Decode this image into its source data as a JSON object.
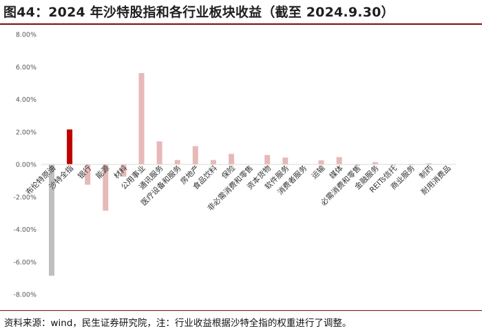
{
  "title": "图44：2024 年沙特股指和各行业板块收益（截至 2024.9.30）",
  "source": "资料来源：wind，民生证券研究院，注：行业收益根据沙特全指的权重进行了调整。",
  "colors": {
    "index": "#c00000",
    "sector": "#e6b9b8",
    "energy": "#bfbfbf",
    "axis": "#d9d9d9",
    "rule": "#7a0a0a"
  },
  "chart_data": {
    "type": "bar",
    "ylim": [
      -8,
      8
    ],
    "ytick_step": 2,
    "ytick_format": "0.00%",
    "grid": false,
    "categories": [
      "布伦特原油",
      "沙特全指",
      "银行",
      "能源",
      "材料",
      "公用事业",
      "通讯服务",
      "医疗设备和服务",
      "房地产",
      "食品饮料",
      "保险",
      "非必需消费和零售",
      "资本货物",
      "软件服务",
      "消费者服务",
      "运输",
      "媒体",
      "必需消费和零售",
      "金融服务",
      "REITs信托",
      "商业服务",
      "制药",
      "耐用消费品"
    ],
    "values": [
      -6.85,
      2.15,
      -1.25,
      -2.85,
      -0.75,
      5.62,
      1.42,
      0.27,
      1.12,
      0.27,
      0.65,
      0.0,
      0.58,
      0.42,
      0.0,
      0.25,
      0.45,
      -0.08,
      0.14,
      -0.06,
      -0.05,
      0.07,
      0.0
    ],
    "bar_colors": [
      "#bfbfbf",
      "#c00000",
      "#e6b9b8",
      "#e6b9b8",
      "#e6b9b8",
      "#e6b9b8",
      "#e6b9b8",
      "#e6b9b8",
      "#e6b9b8",
      "#e6b9b8",
      "#e6b9b8",
      "#e6b9b8",
      "#e6b9b8",
      "#e6b9b8",
      "#e6b9b8",
      "#e6b9b8",
      "#e6b9b8",
      "#e6b9b8",
      "#e6b9b8",
      "#e6b9b8",
      "#e6b9b8",
      "#e6b9b8",
      "#e6b9b8"
    ]
  }
}
